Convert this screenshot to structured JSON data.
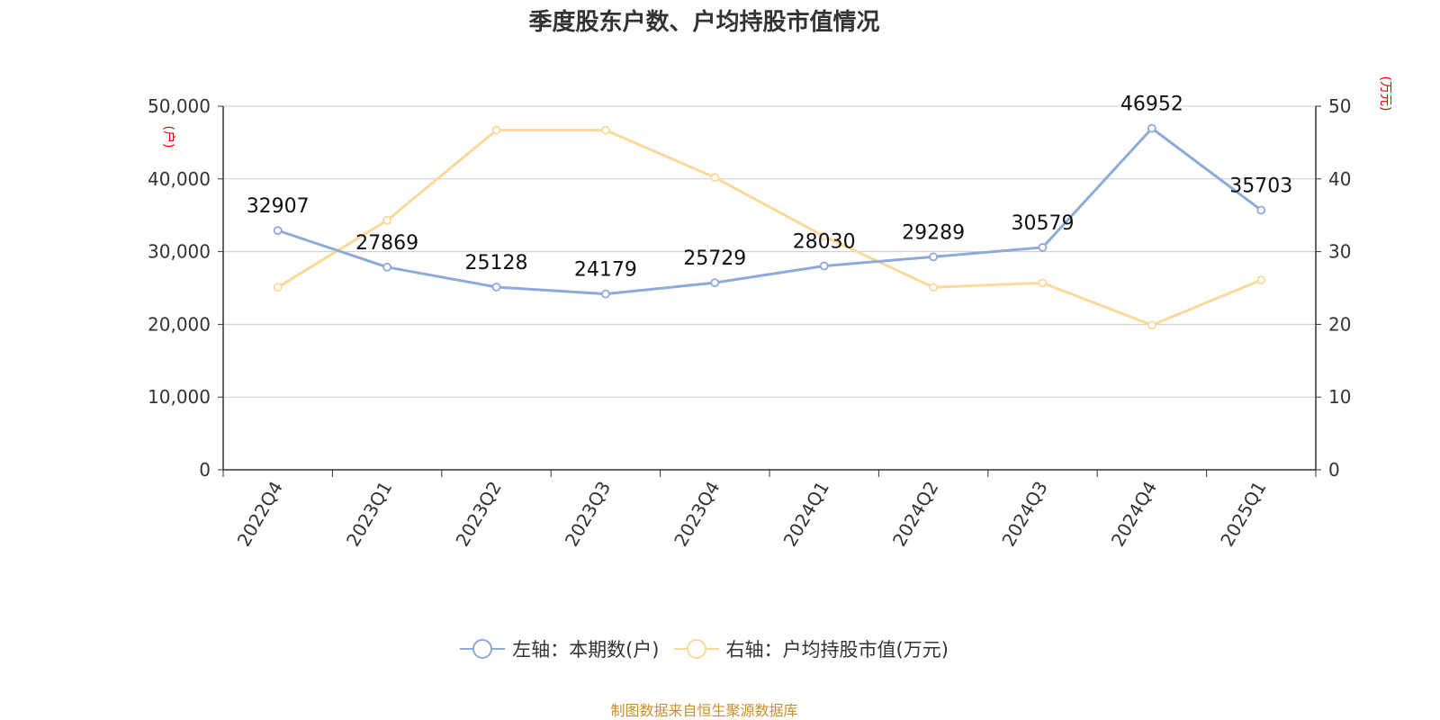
{
  "title": "季度股东户数、户均持股市值情况",
  "source": "制图数据来自恒生聚源数据库",
  "colors": {
    "left_series": "#8eaad8",
    "right_series": "#fcd99a",
    "unit_label": "#e00000",
    "source": "#c8902a",
    "grid": "#cccccc"
  },
  "chart_data": {
    "type": "line",
    "title": "季度股东户数、户均持股市值情况",
    "categories": [
      "2022Q4",
      "2023Q1",
      "2023Q2",
      "2023Q3",
      "2023Q4",
      "2024Q1",
      "2024Q2",
      "2024Q3",
      "2024Q4",
      "2025Q1"
    ],
    "left_axis": {
      "unit": "(户)",
      "ylim": [
        0,
        50000
      ],
      "ticks": [
        "0",
        "10,000",
        "20,000",
        "30,000",
        "40,000",
        "50,000"
      ]
    },
    "right_axis": {
      "unit": "(万元)",
      "ylim": [
        0,
        50
      ],
      "ticks": [
        "0",
        "10",
        "20",
        "30",
        "40",
        "50"
      ]
    },
    "series": [
      {
        "name": "左轴：本期数(户)",
        "axis": "left",
        "values": [
          32907,
          27869,
          25128,
          24179,
          25729,
          28030,
          29289,
          30579,
          46952,
          35703
        ],
        "show_labels": true
      },
      {
        "name": "右轴：户均持股市值(万元)",
        "axis": "right",
        "values": [
          25.1,
          34.3,
          46.7,
          46.7,
          40.2,
          32.1,
          25.1,
          25.7,
          19.9,
          26.1
        ],
        "show_labels": false
      }
    ],
    "grid": true,
    "legend_position": "bottom"
  }
}
